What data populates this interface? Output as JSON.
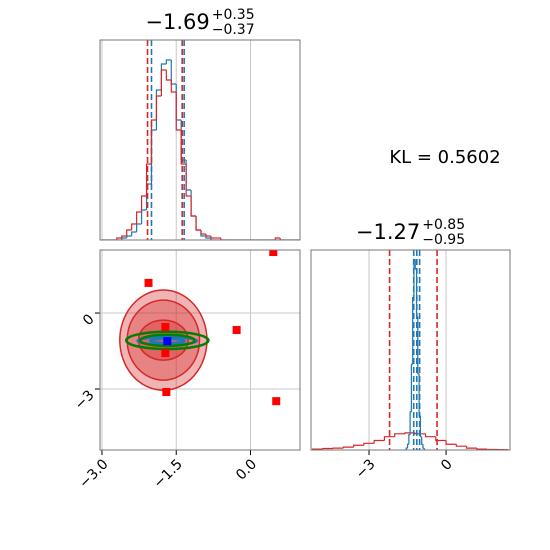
{
  "chart_data": [
    {
      "type": "histogram",
      "title": {
        "main": "−1.69",
        "upper": "+0.35",
        "lower": "−0.37"
      },
      "xlim": [
        -3.04,
        1.0
      ],
      "ylim": [
        0,
        100
      ],
      "xticks": [
        -3,
        -1.5,
        0
      ],
      "grid": true,
      "tick_labels": false,
      "series": [
        {
          "color": "#1f77b4",
          "bins": [
            -3,
            -2.9,
            -2.8,
            -2.7,
            -2.6,
            -2.5,
            -2.4,
            -2.3,
            -2.2,
            -2.1,
            -2,
            -1.9,
            -1.8,
            -1.7,
            -1.6,
            -1.5,
            -1.4,
            -1.3,
            -1.2,
            -1.1,
            -1,
            -0.9,
            -0.8,
            -0.7,
            -0.6,
            -0.5,
            -0.4,
            -0.3,
            -0.2,
            -0.1,
            0,
            0.1,
            0.2,
            0.3,
            0.4,
            0.5,
            0.6,
            0.7,
            0.8,
            0.9,
            1
          ],
          "values": [
            0,
            0,
            0,
            0,
            1,
            2,
            4,
            8,
            15,
            28,
            55,
            75,
            88,
            90,
            78,
            60,
            40,
            25,
            12,
            5,
            2,
            1,
            0,
            0,
            0,
            0,
            0,
            0,
            0,
            0,
            0,
            0,
            0,
            0,
            0,
            0,
            0,
            0,
            0,
            0
          ],
          "quantiles": [
            -2.0,
            -1.34
          ]
        },
        {
          "color": "#d62728",
          "bins": [
            -3,
            -2.9,
            -2.8,
            -2.7,
            -2.6,
            -2.5,
            -2.4,
            -2.3,
            -2.2,
            -2.1,
            -2,
            -1.9,
            -1.8,
            -1.7,
            -1.6,
            -1.5,
            -1.4,
            -1.3,
            -1.2,
            -1.1,
            -1,
            -0.9,
            -0.8,
            -0.7,
            -0.6,
            -0.5,
            -0.4,
            -0.3,
            -0.2,
            -0.1,
            0,
            0.1,
            0.2,
            0.3,
            0.4,
            0.5,
            0.6,
            0.7,
            0.8,
            0.9,
            1
          ],
          "values": [
            0,
            0,
            0,
            1,
            2,
            5,
            8,
            14,
            22,
            38,
            60,
            72,
            85,
            80,
            74,
            55,
            38,
            22,
            12,
            5,
            3,
            2,
            1,
            1,
            0,
            0,
            0,
            0,
            0,
            0,
            0,
            0,
            0,
            0,
            0,
            1,
            0,
            0,
            0,
            0
          ],
          "quantiles": [
            -2.08,
            -1.38
          ]
        }
      ]
    },
    {
      "type": "contour",
      "xlim": [
        -3.04,
        1.0
      ],
      "ylim": [
        -5.41,
        2.49
      ],
      "xticks": [
        {
          "value": -3,
          "label": "−3.0"
        },
        {
          "value": -1.5,
          "label": "−1.5"
        },
        {
          "value": 0,
          "label": "0.0"
        }
      ],
      "yticks": [
        {
          "value": -3,
          "label": "−3"
        },
        0
      ],
      "grid": true,
      "tick_labels": true,
      "series": [
        {
          "color": "#d62728",
          "filled": true,
          "center": [
            -1.76,
            -1.07
          ],
          "semi_x": [
            0.88,
            0.73,
            0.5
          ],
          "semi_y": [
            1.98,
            1.58,
            0.79
          ]
        },
        {
          "color": "#1f77b4",
          "filled": false,
          "center": [
            -1.68,
            -1.1
          ],
          "semi_x": [
            0.6,
            0.35
          ],
          "semi_y": [
            0.15,
            0.08
          ]
        },
        {
          "color": "#008000",
          "filled": false,
          "center": [
            -1.68,
            -1.08
          ],
          "semi_x": [
            0.83,
            0.55
          ],
          "semi_y": [
            0.34,
            0.22
          ]
        }
      ],
      "points": [
        {
          "color": "#ff0000",
          "x": [
            -2.06,
            0.46,
            -0.28,
            0.52,
            -1.72,
            -1.72,
            -1.7
          ],
          "y": [
            1.19,
            2.41,
            -0.67,
            -3.48,
            -0.55,
            -1.58,
            -3.12
          ]
        },
        {
          "color": "#0000ff",
          "x": [
            -1.68
          ],
          "y": [
            -1.11
          ]
        }
      ]
    },
    {
      "type": "histogram",
      "title": {
        "main": "−1.27",
        "upper": "+0.85",
        "lower": "−0.95"
      },
      "xlim": [
        -5.26,
        2.49
      ],
      "ylim": [
        0,
        105
      ],
      "xticks": [
        {
          "value": -3,
          "label": "−3"
        },
        0
      ],
      "grid": true,
      "tick_labels": true,
      "series": [
        {
          "color": "#d62728",
          "bins": [
            -5.2,
            -4.8,
            -4.4,
            -4,
            -3.6,
            -3.2,
            -2.8,
            -2.4,
            -2,
            -1.6,
            -1.2,
            -0.8,
            -0.4,
            0,
            0.4,
            0.8,
            1.2,
            1.6,
            2,
            2.4
          ],
          "values": [
            0.5,
            0.8,
            1,
            1.5,
            2.5,
            3.5,
            5,
            7,
            8.5,
            9,
            8.5,
            7,
            5,
            3,
            2,
            1,
            0.5,
            0.3,
            0.2
          ],
          "quantiles": [
            -2.2,
            -0.35
          ]
        },
        {
          "color": "#1f77b4",
          "bins": [
            -1.6,
            -1.55,
            -1.5,
            -1.45,
            -1.4,
            -1.35,
            -1.3,
            -1.25,
            -1.2,
            -1.15,
            -1.1,
            -1.05,
            -1,
            -0.95,
            -0.9,
            -0.85,
            -0.8
          ],
          "values": [
            0,
            1,
            3,
            8,
            20,
            45,
            80,
            100,
            95,
            70,
            40,
            18,
            7,
            3,
            1,
            0
          ],
          "quantiles": [
            -1.26,
            -1.14,
            -1.03
          ]
        }
      ]
    }
  ],
  "annotation": "KL = 0.5602"
}
